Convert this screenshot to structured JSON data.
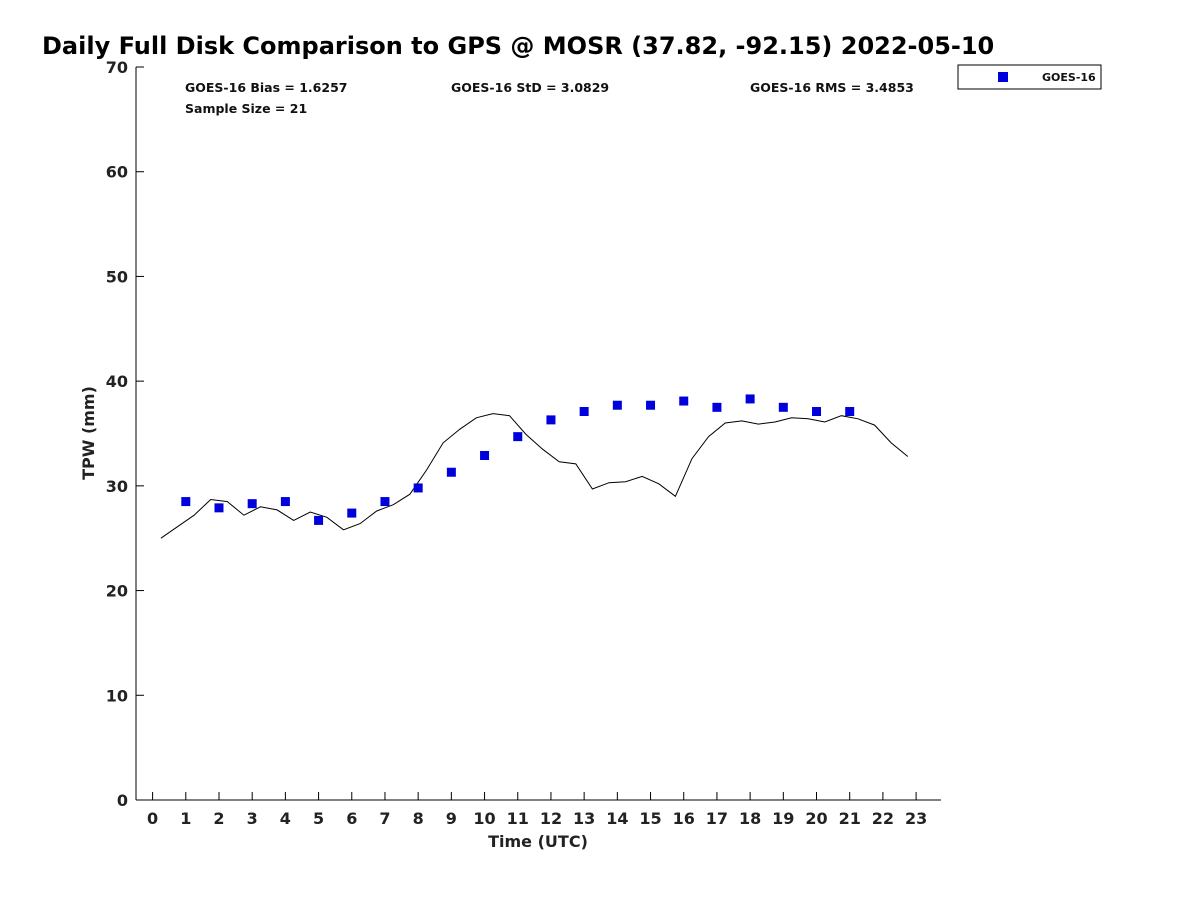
{
  "colors": {
    "marker": "#0000dd",
    "line": "#000000",
    "axis": "#000000"
  },
  "chart_data": {
    "type": "scatter",
    "title": "Daily Full Disk Comparison to GPS @ MOSR (37.82, -92.15) 2022-05-10",
    "xlabel": "Time (UTC)",
    "ylabel": "TPW (mm)",
    "xlim": [
      -0.5,
      23.75
    ],
    "ylim": [
      0,
      70
    ],
    "xticks": [
      0,
      1,
      2,
      3,
      4,
      5,
      6,
      7,
      8,
      9,
      10,
      11,
      12,
      13,
      14,
      15,
      16,
      17,
      18,
      19,
      20,
      21,
      22,
      23
    ],
    "yticks": [
      0,
      10,
      20,
      30,
      40,
      50,
      60,
      70
    ],
    "stats": {
      "bias": "GOES-16 Bias = 1.6257",
      "std": "GOES-16 StD = 3.0829",
      "rms": "GOES-16 RMS = 3.4853",
      "sample": "Sample Size = 21"
    },
    "legend": {
      "label": "GOES-16",
      "position": "top-right outside"
    },
    "series": [
      {
        "name": "GOES-16",
        "kind": "markers",
        "x": [
          1,
          2,
          3,
          4,
          5,
          6,
          7,
          8,
          9,
          10,
          11,
          12,
          13,
          14,
          15,
          16,
          17,
          18,
          19,
          20,
          21
        ],
        "y": [
          28.5,
          27.9,
          28.3,
          28.5,
          26.7,
          27.4,
          28.5,
          29.8,
          31.3,
          32.9,
          34.7,
          36.3,
          37.1,
          37.7,
          37.7,
          38.1,
          37.5,
          38.3,
          37.5,
          37.1,
          37.1
        ]
      },
      {
        "name": "GPS",
        "kind": "line",
        "x": [
          0.25,
          0.75,
          1.25,
          1.75,
          2.25,
          2.75,
          3.25,
          3.75,
          4.25,
          4.75,
          5.25,
          5.75,
          6.25,
          6.75,
          7.25,
          7.75,
          8.25,
          8.75,
          9.25,
          9.75,
          10.25,
          10.75,
          11.25,
          11.75,
          12.25,
          12.75,
          13.25,
          13.75,
          14.25,
          14.75,
          15.25,
          15.75,
          16.25,
          16.75,
          17.25,
          17.75,
          18.25,
          18.75,
          19.25,
          19.75,
          20.25,
          20.75,
          21.25,
          21.75,
          22.25,
          22.75
        ],
        "y": [
          25.0,
          26.1,
          27.2,
          28.7,
          28.5,
          27.2,
          28.0,
          27.7,
          26.7,
          27.5,
          27.0,
          25.8,
          26.4,
          27.6,
          28.2,
          29.2,
          31.5,
          34.1,
          35.4,
          36.5,
          36.9,
          36.7,
          34.9,
          33.5,
          32.3,
          32.1,
          29.7,
          30.3,
          30.4,
          30.9,
          30.2,
          29.0,
          32.6,
          34.7,
          36.0,
          36.2,
          35.9,
          36.1,
          36.5,
          36.4,
          36.1,
          36.7,
          36.4,
          35.8,
          34.1,
          32.8
        ]
      }
    ]
  }
}
